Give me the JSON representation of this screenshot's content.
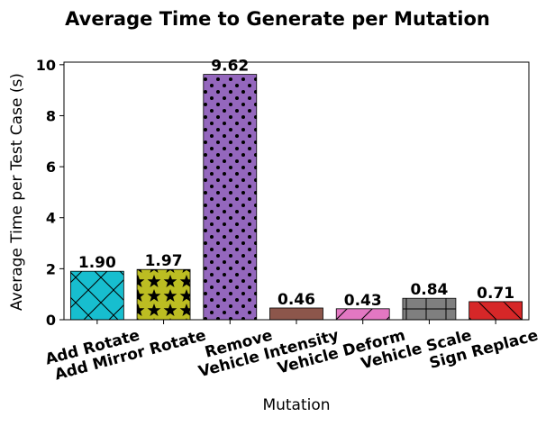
{
  "chart_data": {
    "type": "bar",
    "title": "Average Time to Generate per Mutation",
    "xlabel": "Mutation",
    "ylabel": "Average Time per Test Case (s)",
    "categories": [
      "Add Rotate",
      "Add Mirror Rotate",
      "Remove",
      "Vehicle Intensity",
      "Vehicle Deform",
      "Vehicle Scale",
      "Sign Replace"
    ],
    "values": [
      1.9,
      1.97,
      9.62,
      0.46,
      0.43,
      0.84,
      0.71
    ],
    "value_labels": [
      "1.90",
      "1.97",
      "9.62",
      "0.46",
      "0.43",
      "0.84",
      "0.71"
    ],
    "colors": [
      "#17becf",
      "#bcbd22",
      "#9467bd",
      "#8c564b",
      "#e377c2",
      "#7f7f7f",
      "#d62728"
    ],
    "hatches": [
      "x",
      "stars",
      "dots",
      "none",
      "diagonal",
      "plus",
      "backslash"
    ],
    "ylim": [
      0,
      10.1
    ],
    "yticks": [
      0,
      2,
      4,
      6,
      8,
      10
    ],
    "grid": false,
    "legend": "none"
  }
}
